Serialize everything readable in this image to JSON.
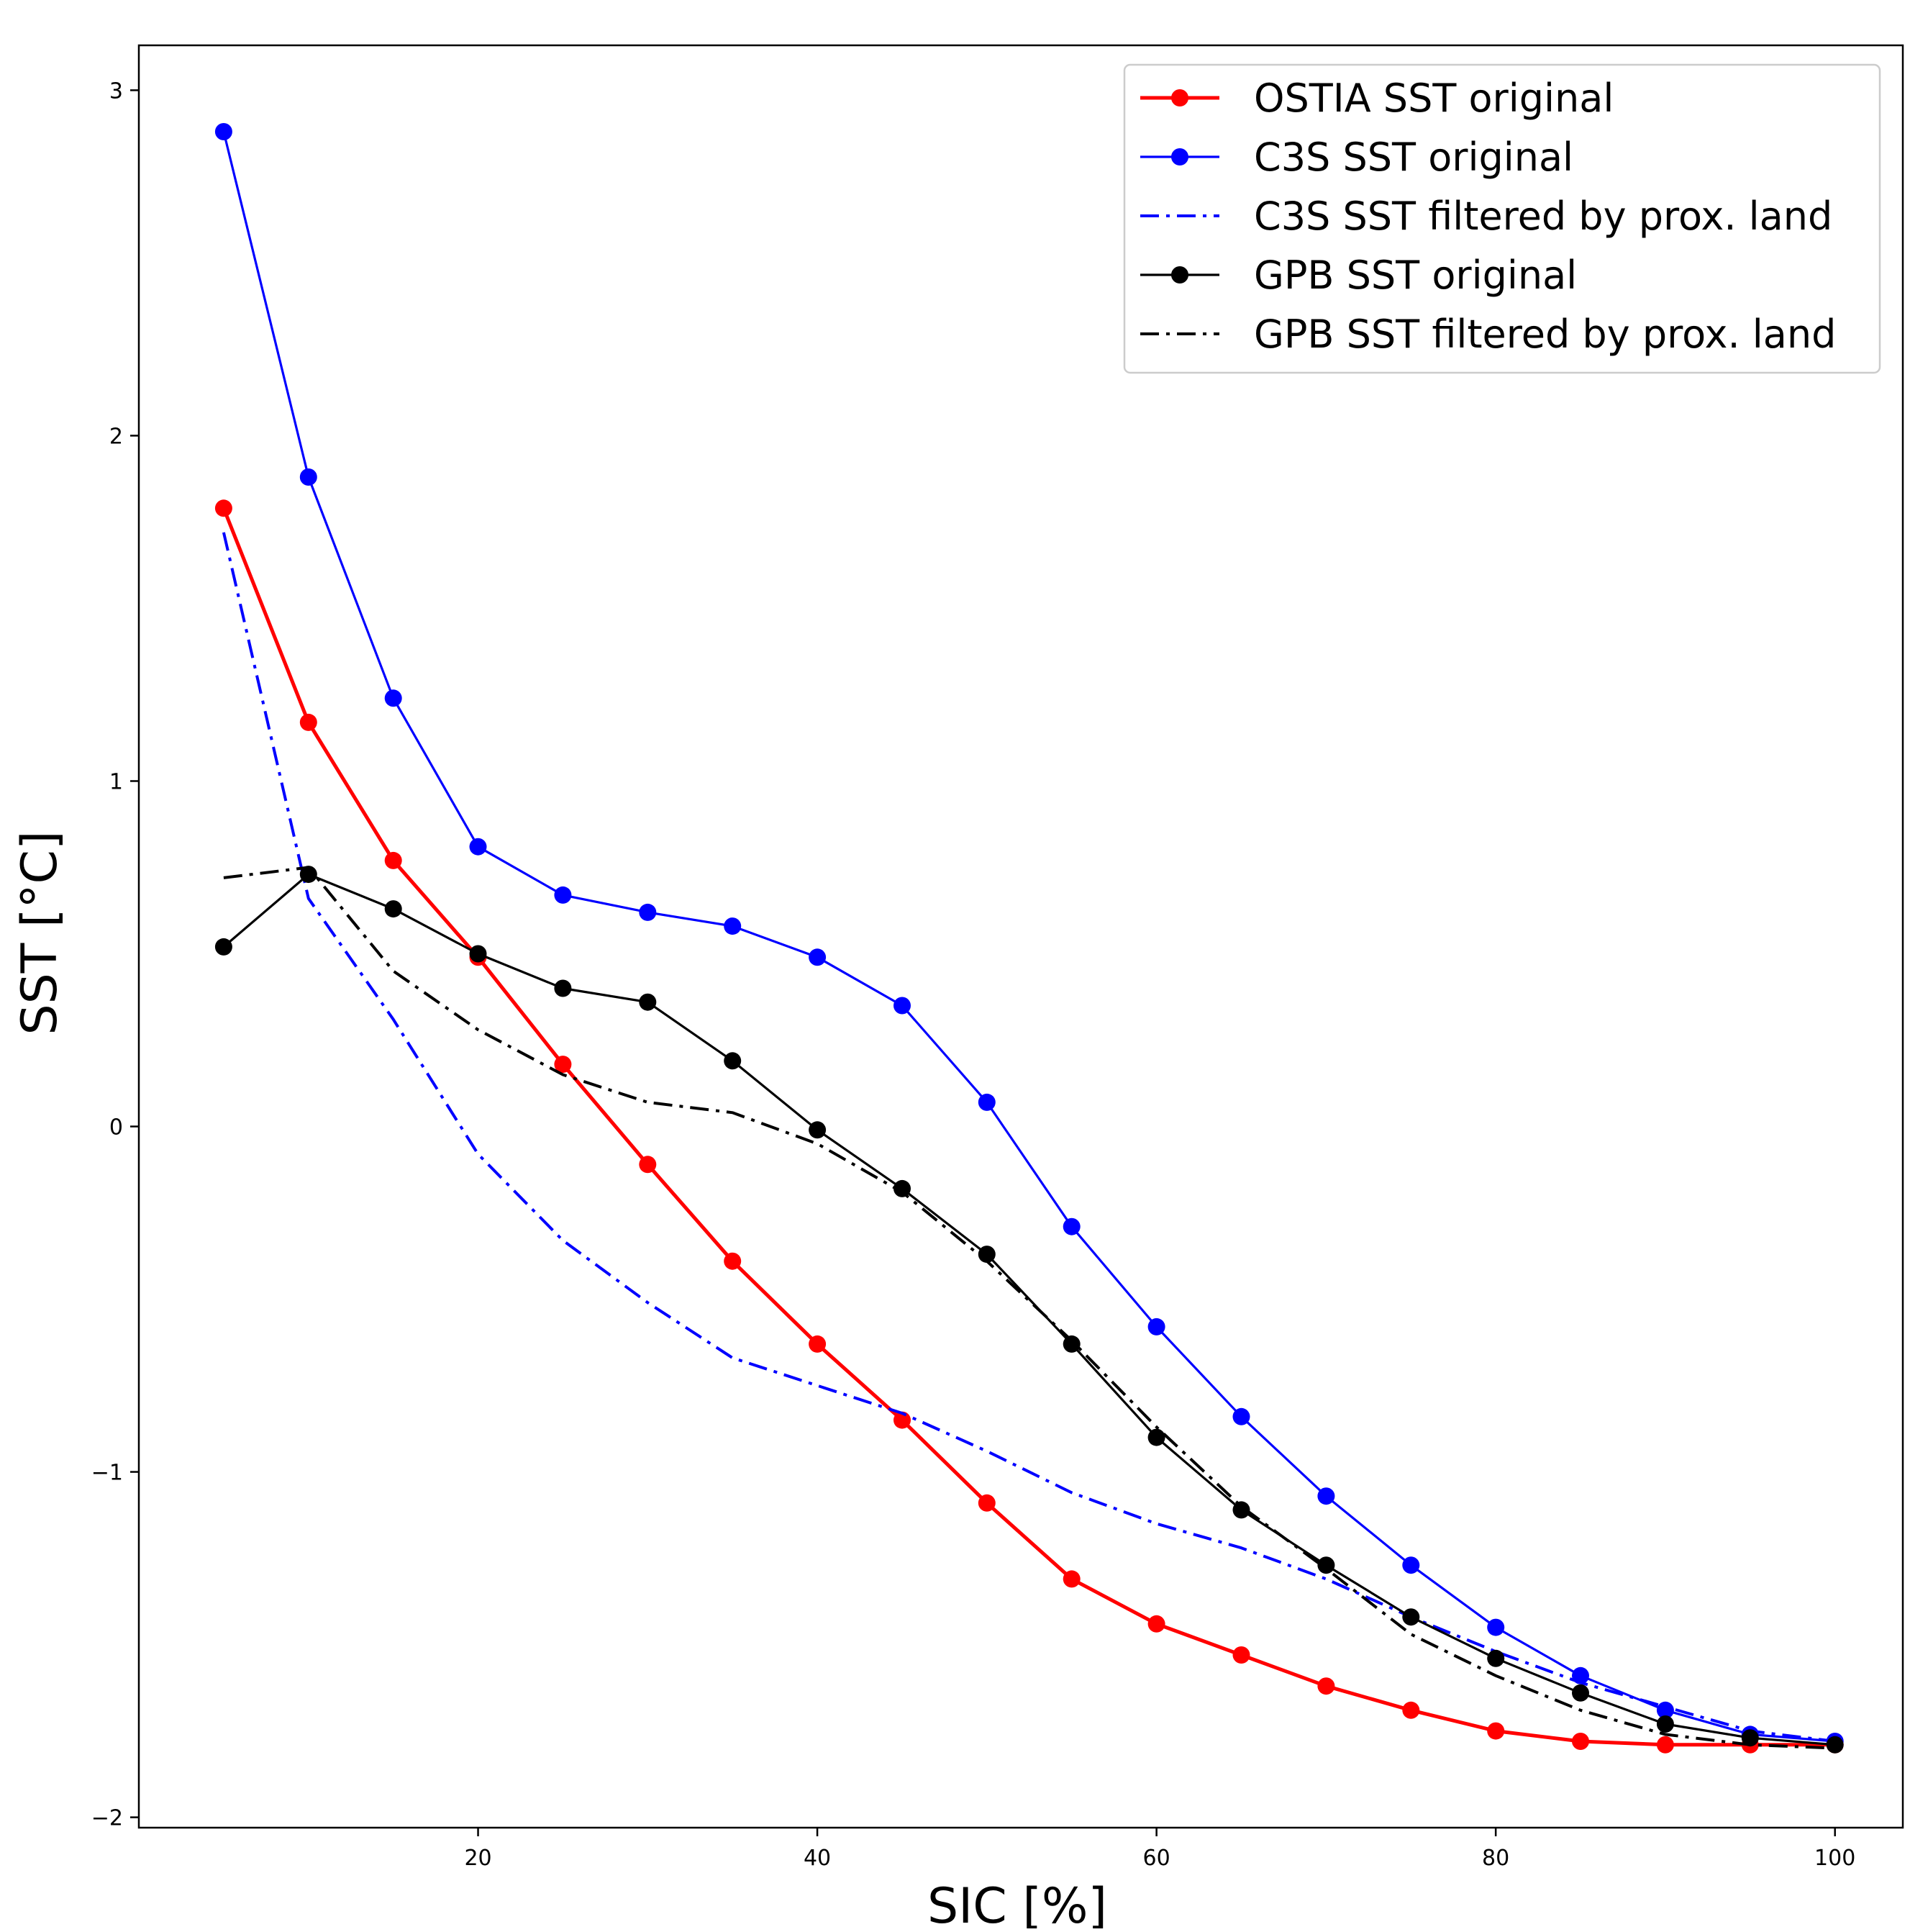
{
  "chart_data": {
    "type": "line",
    "title": "",
    "xlabel": "SIC [%]",
    "ylabel": "SST  [°C]",
    "xlim": [
      0,
      104
    ],
    "ylim": [
      -2.03,
      3.13
    ],
    "xticks": [
      20,
      40,
      60,
      80,
      100
    ],
    "yticks": [
      -2,
      -1,
      0,
      1,
      2,
      3
    ],
    "grid": false,
    "legend_position": "top-right",
    "x": [
      5,
      10,
      15,
      20,
      25,
      30,
      35,
      40,
      45,
      50,
      55,
      60,
      65,
      70,
      75,
      80,
      85,
      90,
      95,
      100
    ],
    "series": [
      {
        "name": "OSTIA SST original",
        "color": "#ff0000",
        "style": "solid-marker",
        "values": [
          1.79,
          1.17,
          0.77,
          0.49,
          0.18,
          -0.11,
          -0.39,
          -0.63,
          -0.85,
          -1.09,
          -1.31,
          -1.44,
          -1.53,
          -1.62,
          -1.69,
          -1.75,
          -1.78,
          -1.79,
          -1.79,
          -1.79
        ]
      },
      {
        "name": "C3S SST original",
        "color": "#0000ff",
        "style": "solid-marker",
        "values": [
          2.88,
          1.88,
          1.24,
          0.81,
          0.67,
          0.62,
          0.58,
          0.49,
          0.35,
          0.07,
          -0.29,
          -0.58,
          -0.84,
          -1.07,
          -1.27,
          -1.45,
          -1.59,
          -1.69,
          -1.76,
          -1.78
        ]
      },
      {
        "name": "C3S SST filtered by prox. land",
        "color": "#0000ff",
        "style": "dashdot",
        "values": [
          1.72,
          0.66,
          0.31,
          -0.08,
          -0.33,
          -0.51,
          -0.67,
          -0.75,
          -0.83,
          -0.94,
          -1.06,
          -1.15,
          -1.22,
          -1.31,
          -1.42,
          -1.52,
          -1.61,
          -1.68,
          -1.75,
          -1.78
        ]
      },
      {
        "name": "GPB SST original",
        "color": "#000000",
        "style": "solid-marker",
        "values": [
          0.52,
          0.73,
          0.63,
          0.5,
          0.4,
          0.36,
          0.19,
          -0.01,
          -0.18,
          -0.37,
          -0.63,
          -0.9,
          -1.11,
          -1.27,
          -1.42,
          -1.54,
          -1.64,
          -1.73,
          -1.77,
          -1.79
        ]
      },
      {
        "name": "GPB SST filtered by prox. land",
        "color": "#000000",
        "style": "dashdot",
        "values": [
          0.72,
          0.75,
          0.45,
          0.28,
          0.15,
          0.07,
          0.04,
          -0.05,
          -0.19,
          -0.39,
          -0.62,
          -0.87,
          -1.1,
          -1.28,
          -1.47,
          -1.59,
          -1.69,
          -1.76,
          -1.79,
          -1.8
        ]
      }
    ]
  }
}
